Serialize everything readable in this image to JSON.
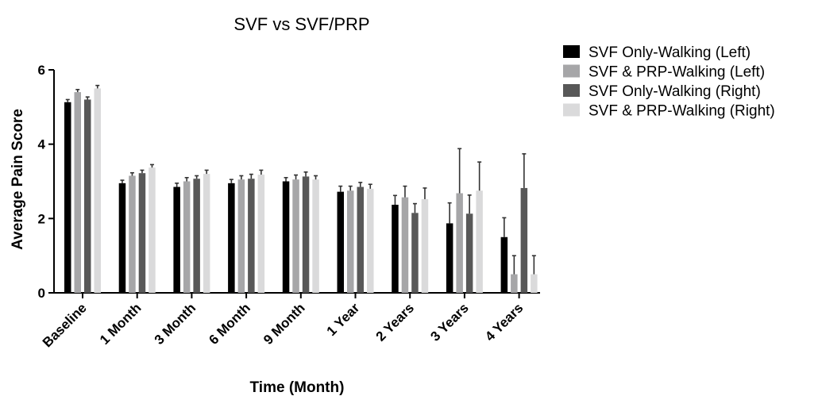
{
  "chart_data": {
    "type": "bar",
    "title": "SVF vs SVF/PRP",
    "xlabel": "Time (Month)",
    "ylabel": "Average Pain Score",
    "ylim": [
      0,
      6
    ],
    "yticks": [
      0,
      2,
      4,
      6
    ],
    "grid": false,
    "legend_position": "right",
    "categories": [
      "Baseline",
      "1 Month",
      "3 Month",
      "6 Month",
      "9 Month",
      "1 Year",
      "2 Years",
      "3 Years",
      "4 Years"
    ],
    "series": [
      {
        "name": "SVF Only-Walking (Left)",
        "color": "#000000",
        "values": [
          5.13,
          2.95,
          2.85,
          2.95,
          3.0,
          2.72,
          2.37,
          1.87,
          1.5
        ],
        "errors": [
          0.07,
          0.08,
          0.1,
          0.1,
          0.1,
          0.15,
          0.25,
          0.55,
          0.52
        ]
      },
      {
        "name": "SVF & PRP-Walking (Left)",
        "color": "#a6a6a8",
        "values": [
          5.4,
          3.15,
          3.0,
          3.05,
          3.05,
          2.75,
          2.57,
          2.68,
          0.5
        ],
        "errors": [
          0.07,
          0.08,
          0.1,
          0.1,
          0.12,
          0.12,
          0.3,
          1.2,
          0.5
        ]
      },
      {
        "name": "SVF Only-Walking (Right)",
        "color": "#585858",
        "values": [
          5.2,
          3.22,
          3.07,
          3.07,
          3.13,
          2.85,
          2.15,
          2.13,
          2.82
        ],
        "errors": [
          0.07,
          0.08,
          0.08,
          0.12,
          0.12,
          0.12,
          0.25,
          0.5,
          0.92
        ]
      },
      {
        "name": "SVF & PRP-Walking (Right)",
        "color": "#dadadb",
        "values": [
          5.5,
          3.37,
          3.2,
          3.18,
          3.05,
          2.8,
          2.52,
          2.75,
          0.5
        ],
        "errors": [
          0.08,
          0.08,
          0.1,
          0.12,
          0.1,
          0.12,
          0.3,
          0.77,
          0.5
        ]
      }
    ]
  }
}
